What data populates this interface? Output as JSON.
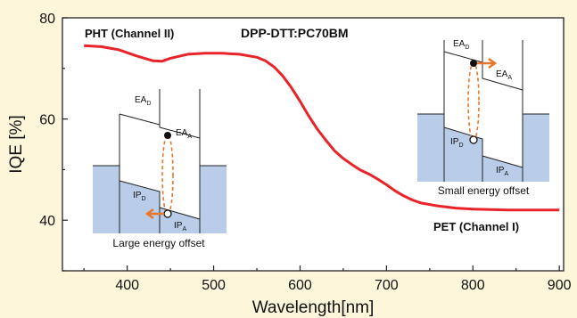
{
  "chart_data": {
    "type": "line",
    "title": "DPP-DTT:PC70BM",
    "xlabel": "Wavelength[nm]",
    "ylabel": "IQE [%]",
    "xlim": [
      325,
      905
    ],
    "ylim": [
      30,
      80
    ],
    "x_ticks": [
      400,
      500,
      600,
      700,
      800,
      900
    ],
    "y_ticks": [
      40,
      60,
      80
    ],
    "grid": false,
    "series": [
      {
        "color": "#e8232a",
        "x": [
          350,
          370,
          390,
          410,
          430,
          440,
          450,
          470,
          490,
          510,
          530,
          550,
          560,
          570,
          580,
          590,
          600,
          610,
          620,
          630,
          640,
          650,
          660,
          670,
          680,
          690,
          700,
          710,
          720,
          730,
          740,
          760,
          780,
          800,
          820,
          840,
          860,
          880,
          900
        ],
        "y": [
          74.5,
          74.3,
          73.7,
          72.5,
          71.5,
          71.4,
          72.0,
          72.8,
          73.0,
          73.0,
          72.8,
          72.2,
          71.5,
          70.3,
          68.5,
          66.2,
          63.5,
          60.6,
          58.0,
          55.8,
          53.7,
          52.2,
          51.0,
          49.9,
          49.1,
          48.1,
          47.0,
          45.8,
          44.8,
          44.0,
          43.4,
          42.8,
          42.4,
          42.2,
          42.1,
          42.0,
          42.0,
          42.0,
          42.0
        ]
      }
    ],
    "annotations": {
      "pht": "PHT (Channel II)",
      "pet": "PET (Channel I)",
      "inset_large": "Large energy offset",
      "inset_small": "Small energy offset"
    },
    "level_labels": {
      "ea_d": "EA",
      "ea_a": "EA",
      "ip_d": "IP",
      "ip_a": "IP",
      "sub_d": "D",
      "sub_a": "A"
    }
  },
  "colors": {
    "background": "#fdf6da",
    "curve": "#e8232a",
    "arrow": "#e8772e",
    "band_fill": "#b9cde8"
  }
}
